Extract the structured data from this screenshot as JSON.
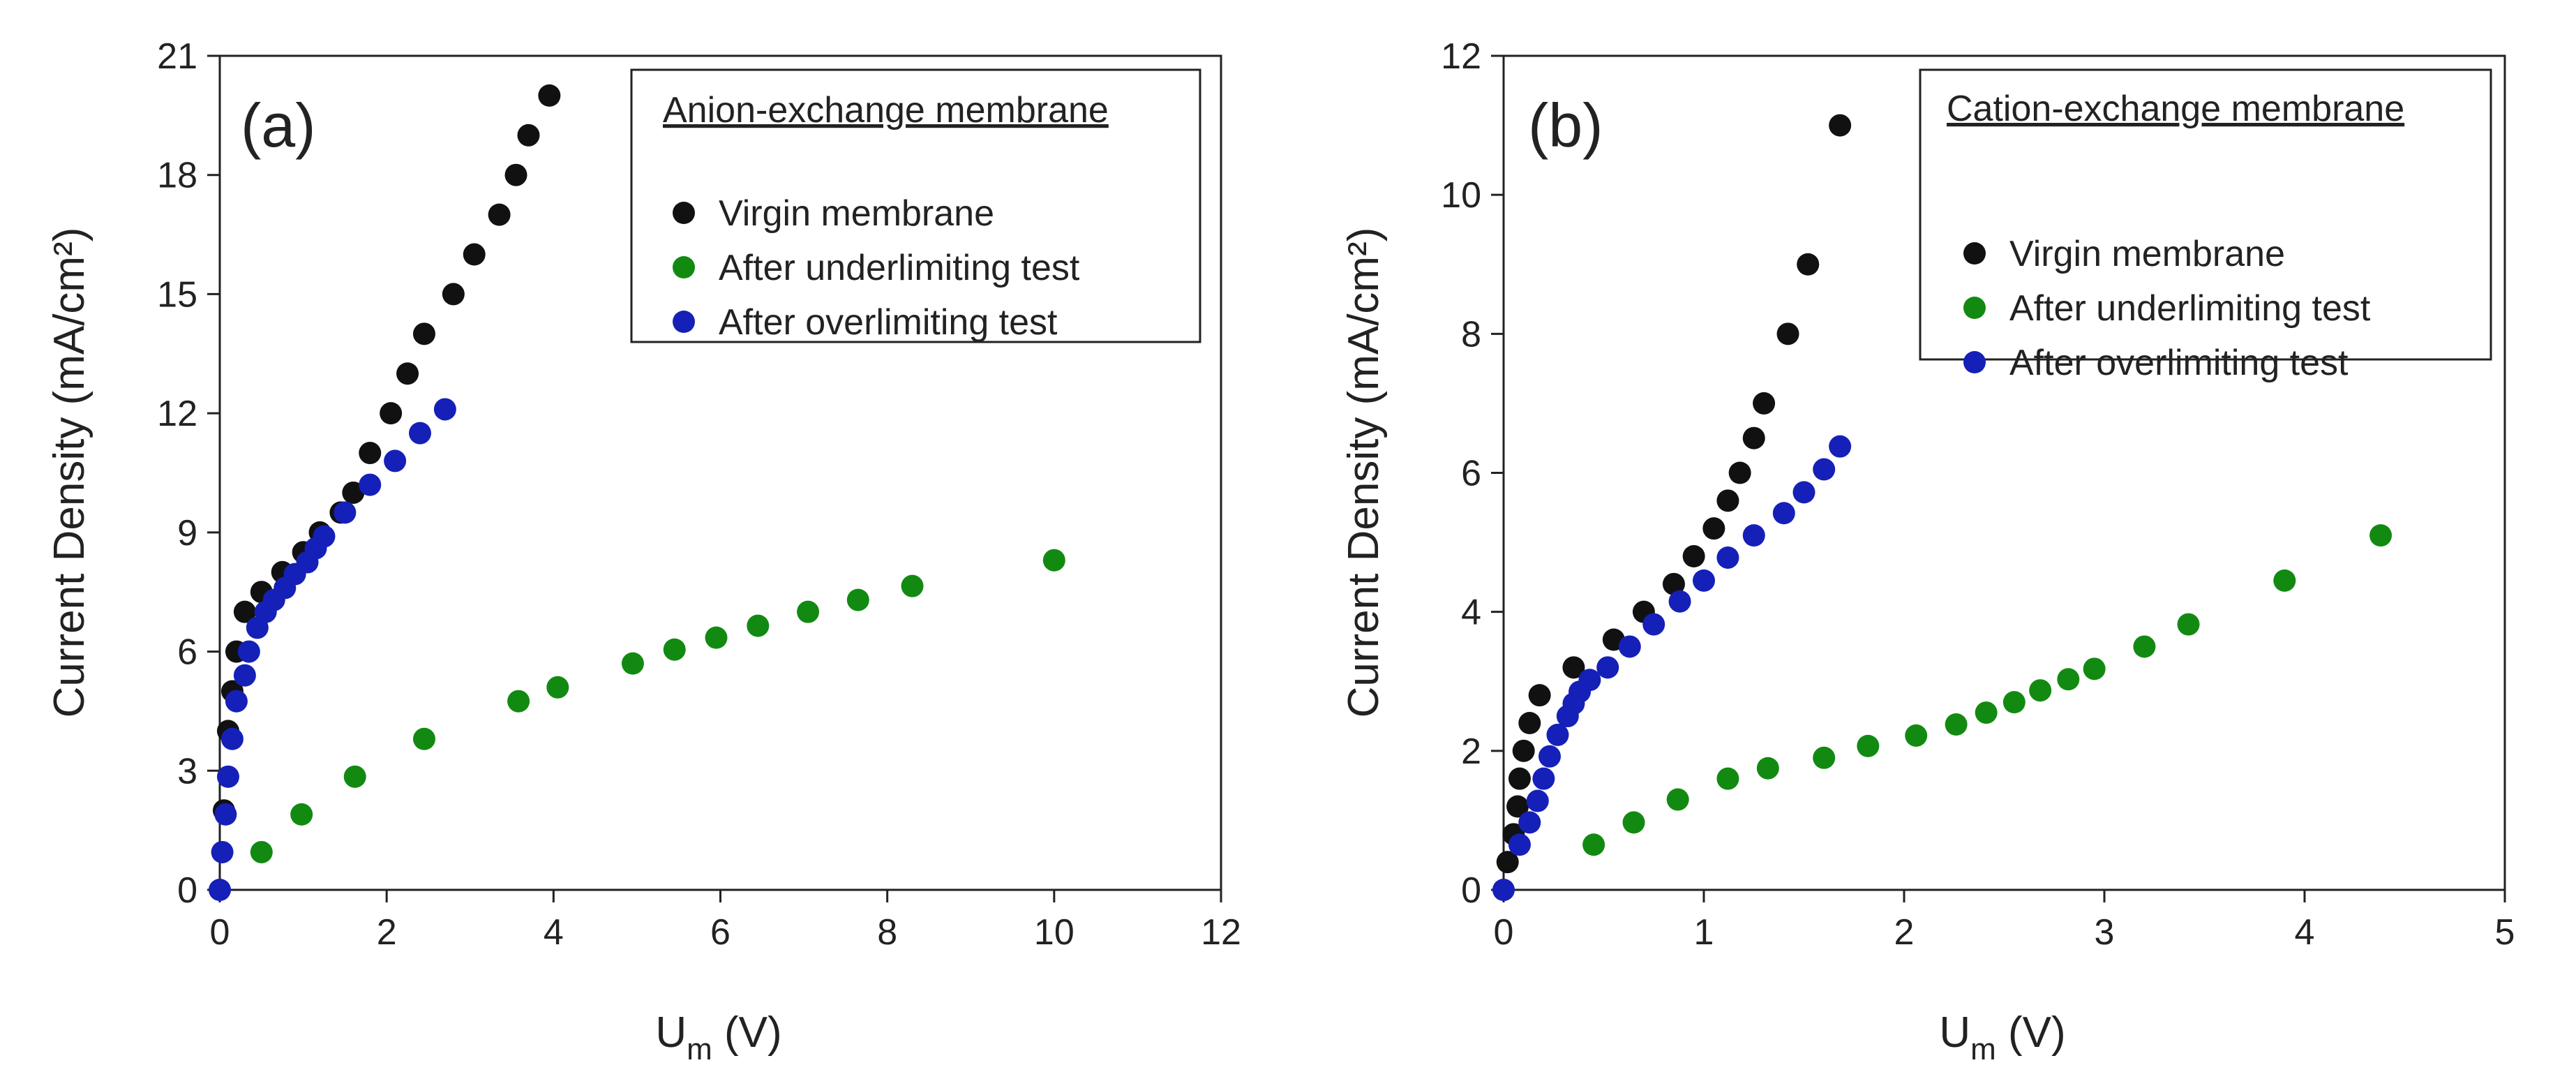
{
  "chart_data": [
    {
      "type": "scatter",
      "panel_label": "(a)",
      "legend_title": "Anion-exchange membrane",
      "xlabel": {
        "main": "U",
        "sub": "m",
        "rest": " (V)"
      },
      "ylabel": "Current Density (mA/cm²)",
      "xlim": [
        0,
        12
      ],
      "ylim": [
        0,
        21
      ],
      "xticks": [
        0,
        2,
        4,
        6,
        8,
        10,
        12
      ],
      "yticks": [
        0,
        3,
        6,
        9,
        12,
        15,
        18,
        21
      ],
      "grid": false,
      "legend_position": "top-right",
      "series": [
        {
          "name": "Virgin membrane",
          "color": "#111111",
          "points": [
            [
              0.05,
              2
            ],
            [
              0.1,
              4
            ],
            [
              0.15,
              5
            ],
            [
              0.2,
              6
            ],
            [
              0.3,
              7
            ],
            [
              0.5,
              7.5
            ],
            [
              0.75,
              8
            ],
            [
              1.0,
              8.5
            ],
            [
              1.2,
              9
            ],
            [
              1.45,
              9.5
            ],
            [
              1.6,
              10
            ],
            [
              1.8,
              11
            ],
            [
              2.05,
              12
            ],
            [
              2.25,
              13
            ],
            [
              2.45,
              14
            ],
            [
              2.8,
              15
            ],
            [
              3.05,
              16
            ],
            [
              3.35,
              17
            ],
            [
              3.55,
              18
            ],
            [
              3.7,
              19
            ],
            [
              3.95,
              20
            ]
          ]
        },
        {
          "name": "After underlimiting test",
          "color": "#128a12",
          "points": [
            [
              0.5,
              0.95
            ],
            [
              0.98,
              1.9
            ],
            [
              1.62,
              2.85
            ],
            [
              2.45,
              3.8
            ],
            [
              3.58,
              4.75
            ],
            [
              4.05,
              5.1
            ],
            [
              4.95,
              5.7
            ],
            [
              5.45,
              6.05
            ],
            [
              5.95,
              6.35
            ],
            [
              6.45,
              6.65
            ],
            [
              7.05,
              7.0
            ],
            [
              7.65,
              7.3
            ],
            [
              8.3,
              7.65
            ],
            [
              10.0,
              8.3
            ]
          ]
        },
        {
          "name": "After overlimiting test",
          "color": "#1520b8",
          "points": [
            [
              0.0,
              0.0
            ],
            [
              0.03,
              0.95
            ],
            [
              0.07,
              1.9
            ],
            [
              0.1,
              2.85
            ],
            [
              0.15,
              3.8
            ],
            [
              0.2,
              4.75
            ],
            [
              0.3,
              5.4
            ],
            [
              0.35,
              6.0
            ],
            [
              0.45,
              6.6
            ],
            [
              0.55,
              7.0
            ],
            [
              0.65,
              7.3
            ],
            [
              0.78,
              7.6
            ],
            [
              0.9,
              7.95
            ],
            [
              1.05,
              8.25
            ],
            [
              1.15,
              8.6
            ],
            [
              1.25,
              8.9
            ],
            [
              1.5,
              9.5
            ],
            [
              1.8,
              10.2
            ],
            [
              2.1,
              10.8
            ],
            [
              2.4,
              11.5
            ],
            [
              2.7,
              12.1
            ]
          ]
        }
      ]
    },
    {
      "type": "scatter",
      "panel_label": "(b)",
      "legend_title": "Cation-exchange membrane",
      "xlabel": {
        "main": "U",
        "sub": "m",
        "rest": " (V)"
      },
      "ylabel": "Current Density (mA/cm²)",
      "xlim": [
        0,
        5
      ],
      "ylim": [
        0,
        12
      ],
      "xticks": [
        0,
        1,
        2,
        3,
        4,
        5
      ],
      "yticks": [
        0,
        2,
        4,
        6,
        8,
        10,
        12
      ],
      "grid": false,
      "legend_position": "top-right",
      "series": [
        {
          "name": "Virgin membrane",
          "color": "#111111",
          "points": [
            [
              0.02,
              0.4
            ],
            [
              0.05,
              0.8
            ],
            [
              0.07,
              1.2
            ],
            [
              0.08,
              1.6
            ],
            [
              0.1,
              2.0
            ],
            [
              0.13,
              2.4
            ],
            [
              0.18,
              2.8
            ],
            [
              0.35,
              3.2
            ],
            [
              0.55,
              3.6
            ],
            [
              0.7,
              4.0
            ],
            [
              0.85,
              4.4
            ],
            [
              0.95,
              4.8
            ],
            [
              1.05,
              5.2
            ],
            [
              1.12,
              5.6
            ],
            [
              1.18,
              6.0
            ],
            [
              1.25,
              6.5
            ],
            [
              1.3,
              7.0
            ],
            [
              1.42,
              8.0
            ],
            [
              1.52,
              9.0
            ],
            [
              1.68,
              11.0
            ]
          ]
        },
        {
          "name": "After underlimiting test",
          "color": "#128a12",
          "points": [
            [
              0.45,
              0.65
            ],
            [
              0.65,
              0.97
            ],
            [
              0.87,
              1.3
            ],
            [
              1.12,
              1.6
            ],
            [
              1.32,
              1.75
            ],
            [
              1.6,
              1.9
            ],
            [
              1.82,
              2.07
            ],
            [
              2.06,
              2.22
            ],
            [
              2.26,
              2.38
            ],
            [
              2.41,
              2.55
            ],
            [
              2.55,
              2.7
            ],
            [
              2.68,
              2.87
            ],
            [
              2.82,
              3.03
            ],
            [
              2.95,
              3.18
            ],
            [
              3.2,
              3.5
            ],
            [
              3.42,
              3.82
            ],
            [
              3.9,
              4.45
            ],
            [
              4.38,
              5.1
            ]
          ]
        },
        {
          "name": "After overlimiting test",
          "color": "#1520b8",
          "points": [
            [
              0.0,
              0.0
            ],
            [
              0.08,
              0.65
            ],
            [
              0.13,
              0.97
            ],
            [
              0.17,
              1.28
            ],
            [
              0.2,
              1.6
            ],
            [
              0.23,
              1.92
            ],
            [
              0.27,
              2.23
            ],
            [
              0.32,
              2.5
            ],
            [
              0.35,
              2.68
            ],
            [
              0.38,
              2.85
            ],
            [
              0.43,
              3.02
            ],
            [
              0.52,
              3.2
            ],
            [
              0.63,
              3.5
            ],
            [
              0.75,
              3.82
            ],
            [
              0.88,
              4.15
            ],
            [
              1.0,
              4.45
            ],
            [
              1.12,
              4.78
            ],
            [
              1.25,
              5.1
            ],
            [
              1.4,
              5.42
            ],
            [
              1.5,
              5.72
            ],
            [
              1.6,
              6.05
            ],
            [
              1.68,
              6.38
            ]
          ]
        }
      ]
    }
  ]
}
